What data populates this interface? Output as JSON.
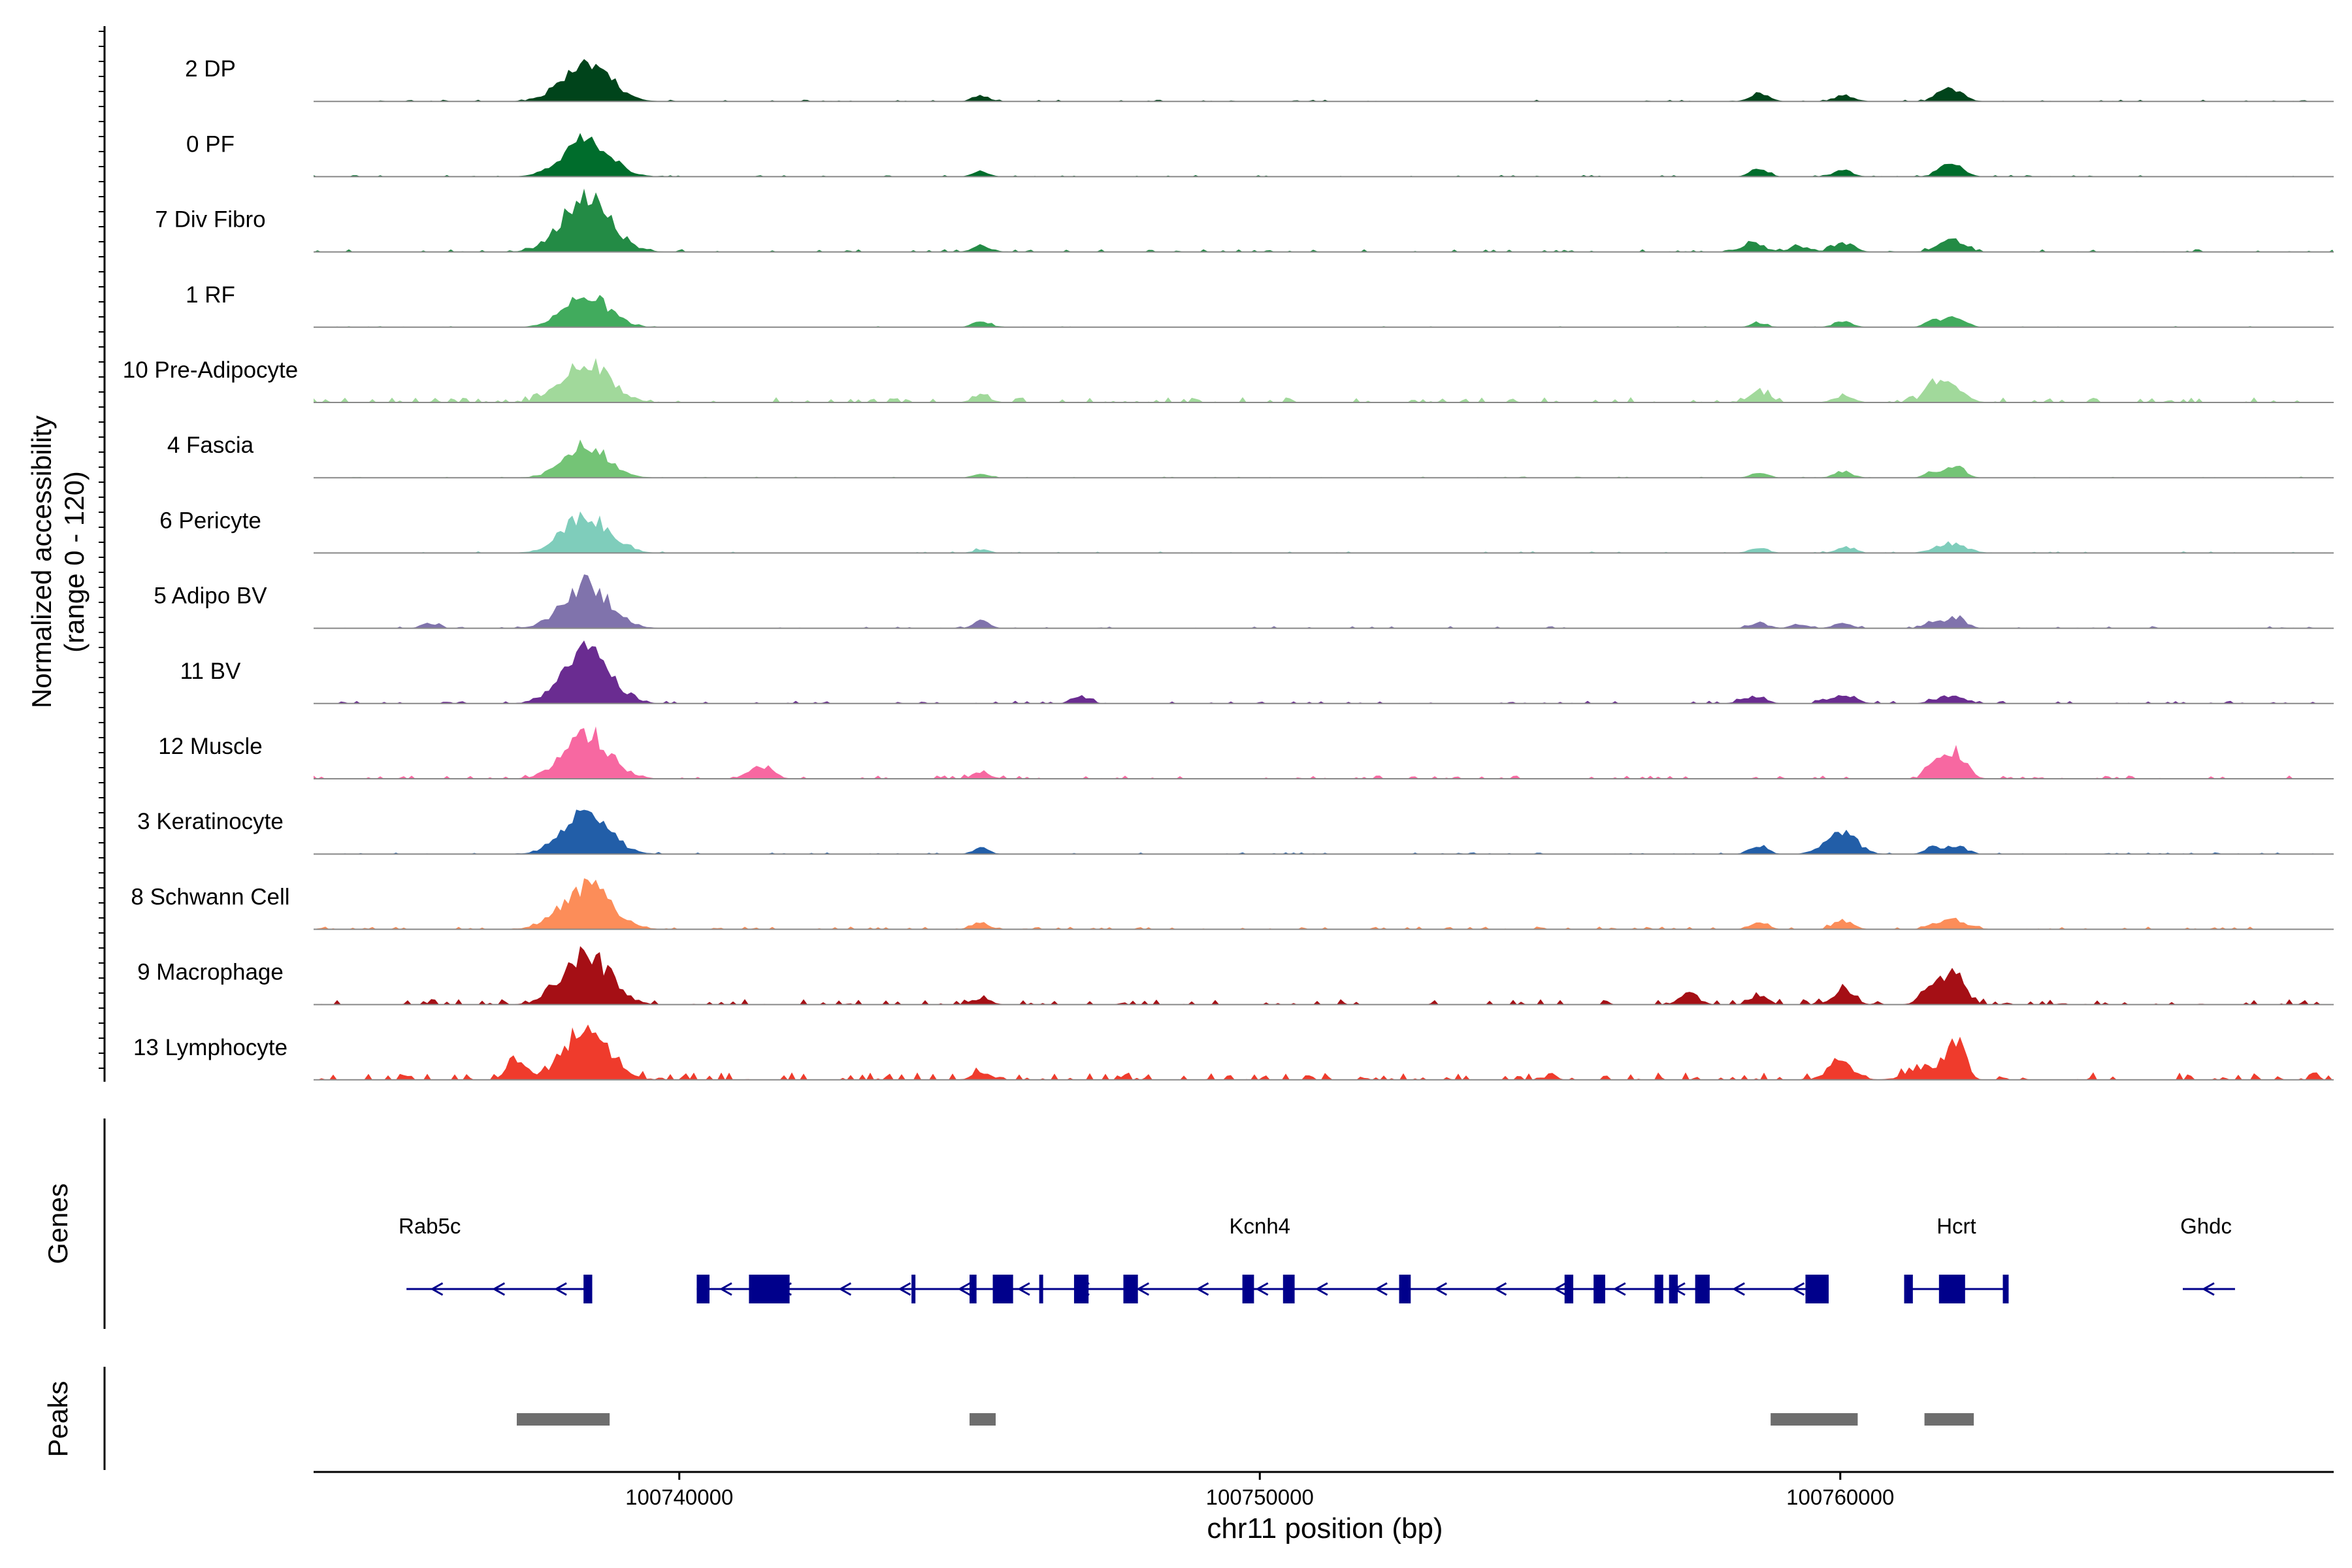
{
  "chart_data": {
    "type": "area",
    "title": "",
    "ylabel_line1": "Normalized accessibility",
    "ylabel_line2": "(range 0 - 120)",
    "xlabel": "chr11 position (bp)",
    "xlim": [
      100733700,
      100768500
    ],
    "ylim": [
      0,
      120
    ],
    "x_ticks": [
      {
        "value": 100740000,
        "label": "100740000"
      },
      {
        "value": 100750000,
        "label": "100750000"
      },
      {
        "value": 100760000,
        "label": "100760000"
      }
    ],
    "series": [
      {
        "name": "2 DP",
        "color": "#00441b",
        "peaks": [
          [
            100738400,
            95,
            400
          ],
          [
            100745200,
            15,
            140
          ],
          [
            100758600,
            20,
            160
          ],
          [
            100760050,
            14,
            160
          ],
          [
            100761900,
            32,
            200
          ]
        ],
        "noise_amp": 3,
        "noise_density": 0.7
      },
      {
        "name": "0 PF",
        "color": "#006d2c",
        "peaks": [
          [
            100738400,
            88,
            400
          ],
          [
            100745200,
            12,
            140
          ],
          [
            100758600,
            18,
            160
          ],
          [
            100760050,
            15,
            170
          ],
          [
            100761900,
            28,
            200
          ]
        ],
        "noise_amp": 3,
        "noise_density": 0.5
      },
      {
        "name": "7 Div Fibro",
        "color": "#238b45",
        "peaks": [
          [
            100738400,
            120,
            420
          ],
          [
            100745200,
            15,
            160
          ],
          [
            100758500,
            20,
            200
          ],
          [
            100759300,
            12,
            160
          ],
          [
            100760050,
            22,
            180
          ],
          [
            100761900,
            32,
            220
          ]
        ],
        "noise_amp": 5,
        "noise_density": 0.6
      },
      {
        "name": "1 RF",
        "color": "#41ab5d",
        "peaks": [
          [
            100738400,
            75,
            380
          ],
          [
            100745200,
            14,
            140
          ],
          [
            100758600,
            10,
            140
          ],
          [
            100760050,
            14,
            160
          ],
          [
            100761600,
            18,
            140
          ],
          [
            100762000,
            25,
            160
          ]
        ],
        "noise_amp": 2,
        "noise_density": 0.4
      },
      {
        "name": "10 Pre-Adipocyte",
        "color": "#a1d99b",
        "peaks": [
          [
            100738400,
            90,
            400
          ],
          [
            100745200,
            18,
            150
          ],
          [
            100758600,
            22,
            180
          ],
          [
            100760050,
            14,
            170
          ],
          [
            100761650,
            48,
            180
          ],
          [
            100762050,
            22,
            180
          ]
        ],
        "noise_amp": 10,
        "noise_density": 0.8
      },
      {
        "name": "4 Fascia",
        "color": "#74c476",
        "peaks": [
          [
            100738400,
            72,
            380
          ],
          [
            100745200,
            8,
            140
          ],
          [
            100758600,
            12,
            150
          ],
          [
            100760050,
            14,
            160
          ],
          [
            100761600,
            14,
            140
          ],
          [
            100762000,
            26,
            160
          ]
        ],
        "noise_amp": 2,
        "noise_density": 0.5
      },
      {
        "name": "6 Pericyte",
        "color": "#7fcdbb",
        "peaks": [
          [
            100738400,
            85,
            400
          ],
          [
            100745200,
            8,
            140
          ],
          [
            100758600,
            12,
            160
          ],
          [
            100760100,
            14,
            160
          ],
          [
            100761900,
            22,
            260
          ]
        ],
        "noise_amp": 3,
        "noise_density": 0.6
      },
      {
        "name": "5 Adipo BV",
        "color": "#8073ac",
        "peaks": [
          [
            100738400,
            100,
            400
          ],
          [
            100735700,
            12,
            140
          ],
          [
            100745200,
            16,
            140
          ],
          [
            100758600,
            12,
            160
          ],
          [
            100759300,
            10,
            140
          ],
          [
            100760050,
            12,
            160
          ],
          [
            100761600,
            16,
            140
          ],
          [
            100762000,
            26,
            160
          ]
        ],
        "noise_amp": 4,
        "noise_density": 0.5
      },
      {
        "name": "11 BV",
        "color": "#6a2c91",
        "peaks": [
          [
            100738400,
            115,
            400
          ],
          [
            100746900,
            20,
            140
          ],
          [
            100758500,
            15,
            200
          ],
          [
            100760050,
            18,
            220
          ],
          [
            100761900,
            18,
            240
          ]
        ],
        "noise_amp": 5,
        "noise_density": 0.7
      },
      {
        "name": "12 Muscle",
        "color": "#f768a1",
        "peaks": [
          [
            100738400,
            100,
            400
          ],
          [
            100741400,
            30,
            200
          ],
          [
            100745200,
            14,
            160
          ],
          [
            100761650,
            40,
            150
          ],
          [
            100762000,
            60,
            180
          ]
        ],
        "noise_amp": 6,
        "noise_density": 0.7
      },
      {
        "name": "3 Keratinocyte",
        "color": "#225ea8",
        "peaks": [
          [
            100738400,
            90,
            400
          ],
          [
            100745200,
            14,
            140
          ],
          [
            100758600,
            16,
            160
          ],
          [
            100760000,
            55,
            260
          ],
          [
            100761600,
            16,
            140
          ],
          [
            100762000,
            20,
            160
          ]
        ],
        "noise_amp": 3,
        "noise_density": 0.6
      },
      {
        "name": "8 Schwann Cell",
        "color": "#fc8d59",
        "peaks": [
          [
            100738400,
            100,
            420
          ],
          [
            100745200,
            14,
            160
          ],
          [
            100758600,
            14,
            160
          ],
          [
            100760050,
            20,
            170
          ],
          [
            100761900,
            25,
            260
          ]
        ],
        "noise_amp": 5,
        "noise_density": 0.7
      },
      {
        "name": "9 Macrophage",
        "color": "#a50f15",
        "peaks": [
          [
            100738400,
            110,
            400
          ],
          [
            100745200,
            14,
            160
          ],
          [
            100757400,
            25,
            160
          ],
          [
            100758600,
            18,
            160
          ],
          [
            100760050,
            35,
            180
          ],
          [
            100761600,
            48,
            180
          ],
          [
            100762000,
            60,
            180
          ]
        ],
        "noise_amp": 10,
        "noise_density": 0.8
      },
      {
        "name": "13 Lymphocyte",
        "color": "#ef3b2c",
        "peaks": [
          [
            100738400,
            120,
            380
          ],
          [
            100737200,
            45,
            160
          ],
          [
            100745200,
            16,
            160
          ],
          [
            100760000,
            40,
            220
          ],
          [
            100761500,
            30,
            300
          ],
          [
            100762000,
            90,
            140
          ]
        ],
        "noise_amp": 14,
        "noise_density": 0.9
      }
    ],
    "genes_label": "Genes",
    "genes": [
      {
        "name": "Rab5c",
        "label_x": 100735700,
        "start": 100735300,
        "end": 100738500,
        "strand": "-",
        "exons": [
          [
            100738350,
            100738500,
            "cds"
          ]
        ]
      },
      {
        "name": "Kcnh4",
        "label_x": 100750000,
        "start": 100740300,
        "end": 100759800,
        "strand": "-",
        "exons": [
          [
            100740300,
            100740520,
            "cds"
          ],
          [
            100741200,
            100741900,
            "cds"
          ],
          [
            100744000,
            100744050,
            "cds"
          ],
          [
            100745000,
            100745120,
            "cds"
          ],
          [
            100745400,
            100745750,
            "cds"
          ],
          [
            100746200,
            100746250,
            "cds"
          ],
          [
            100746800,
            100747050,
            "cds"
          ],
          [
            100747650,
            100747900,
            "cds"
          ],
          [
            100749700,
            100749900,
            "cds"
          ],
          [
            100750400,
            100750600,
            "cds"
          ],
          [
            100752400,
            100752600,
            "cds"
          ],
          [
            100755250,
            100755400,
            "cds"
          ],
          [
            100755750,
            100755950,
            "cds"
          ],
          [
            100756800,
            100756950,
            "cds"
          ],
          [
            100757050,
            100757200,
            "cds"
          ],
          [
            100757500,
            100757750,
            "cds"
          ],
          [
            100759400,
            100759800,
            "cds"
          ]
        ]
      },
      {
        "name": "Hcrt",
        "label_x": 100762000,
        "start": 100761100,
        "end": 100762900,
        "strand": "+",
        "exons": [
          [
            100761100,
            100761250,
            "cds"
          ],
          [
            100761700,
            100762150,
            "cds"
          ],
          [
            100762800,
            100762900,
            "cds"
          ]
        ]
      },
      {
        "name": "Ghdc",
        "label_x": 100766300,
        "start": 100765900,
        "end": 100766800,
        "strand": "-",
        "exons": []
      }
    ],
    "peaks_label": "Peaks",
    "peak_regions": [
      [
        100737200,
        100738800
      ],
      [
        100745000,
        100745450
      ],
      [
        100758800,
        100760300
      ],
      [
        100761450,
        100762300
      ]
    ],
    "colors": {
      "gene_color": "#00008b",
      "peak_color": "#6e6e6e",
      "baseline_color": "#888888"
    }
  }
}
